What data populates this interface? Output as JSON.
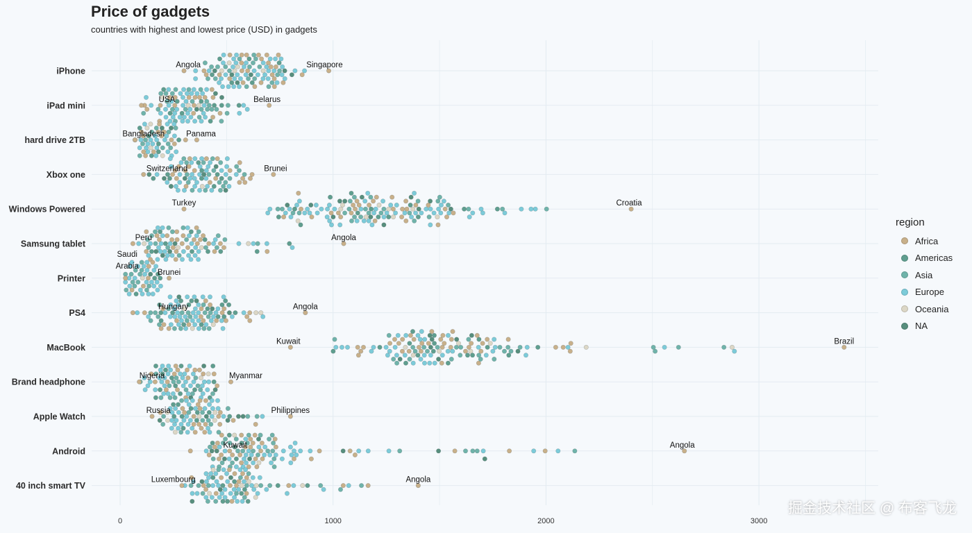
{
  "chart_data": {
    "type": "scatter",
    "title": "Price of gadgets",
    "subtitle": "countries with highest and lowest price (USD) in gadgets",
    "xlim": [
      0,
      3400
    ],
    "x_ticks": [
      0,
      1000,
      2000,
      3000
    ],
    "categories": [
      "iPhone",
      "iPad mini",
      "hard drive 2TB",
      "Xbox one",
      "Windows Powered",
      "Samsung tablet",
      "Printer",
      "PS4",
      "MacBook",
      "Brand headphone",
      "Apple Watch",
      "Android",
      "40 inch smart TV"
    ],
    "legend": {
      "title": "region",
      "position": "right",
      "items": [
        {
          "name": "Africa",
          "color": "#c8b08a"
        },
        {
          "name": "Americas",
          "color": "#5f9e8f"
        },
        {
          "name": "Asia",
          "color": "#6fb3aa"
        },
        {
          "name": "Europe",
          "color": "#7ccbd9"
        },
        {
          "name": "Oceania",
          "color": "#dcd7c6"
        },
        {
          "name": "NA",
          "color": "#578e7d"
        }
      ]
    },
    "series": [
      {
        "category": "iPhone",
        "min": 300,
        "max": 980,
        "center": 560,
        "annotations": [
          {
            "label": "Angola",
            "x": 320
          },
          {
            "label": "Singapore",
            "x": 960
          }
        ]
      },
      {
        "category": "iPad mini",
        "min": 100,
        "max": 700,
        "center": 300,
        "annotations": [
          {
            "label": "USA",
            "x": 220
          },
          {
            "label": "Belarus",
            "x": 690
          }
        ]
      },
      {
        "category": "hard drive 2TB",
        "min": 70,
        "max": 360,
        "center": 160,
        "annotations": [
          {
            "label": "Bangladesh",
            "x": 110
          },
          {
            "label": "Panama",
            "x": 380
          }
        ]
      },
      {
        "category": "Xbox one",
        "min": 110,
        "max": 720,
        "center": 340,
        "annotations": [
          {
            "label": "Switzerland",
            "x": 220
          },
          {
            "label": "Brunei",
            "x": 730
          }
        ]
      },
      {
        "category": "Windows Powered",
        "min": 300,
        "max": 2400,
        "center": 1150,
        "annotations": [
          {
            "label": "Turkey",
            "x": 300
          },
          {
            "label": "Croatia",
            "x": 2390
          }
        ]
      },
      {
        "category": "Samsung tablet",
        "min": 60,
        "max": 1050,
        "center": 280,
        "annotations": [
          {
            "label": "Peru",
            "x": 110
          },
          {
            "label": "Angola",
            "x": 1050
          }
        ]
      },
      {
        "category": "Printer",
        "min": 25,
        "max": 230,
        "center": 100,
        "annotations": [
          {
            "label": "Saudi",
            "x": 30
          },
          {
            "label": "Arabia",
            "x": 30
          },
          {
            "label": "Brunei",
            "x": 230
          }
        ]
      },
      {
        "category": "PS4",
        "min": 60,
        "max": 870,
        "center": 320,
        "annotations": [
          {
            "label": "Hungary",
            "x": 250
          },
          {
            "label": "Angola",
            "x": 870
          }
        ]
      },
      {
        "category": "MacBook",
        "min": 800,
        "max": 3400,
        "center": 1450,
        "annotations": [
          {
            "label": "Kuwait",
            "x": 790
          },
          {
            "label": "Brazil",
            "x": 3400
          }
        ]
      },
      {
        "category": "Brand headphone",
        "min": 90,
        "max": 520,
        "center": 280,
        "annotations": [
          {
            "label": "Nigeria",
            "x": 150
          },
          {
            "label": "Myanmar",
            "x": 590
          }
        ]
      },
      {
        "category": "Apple Watch",
        "min": 150,
        "max": 800,
        "center": 330,
        "annotations": [
          {
            "label": "Russia",
            "x": 180
          },
          {
            "label": "Philippines",
            "x": 800
          }
        ]
      },
      {
        "category": "Android",
        "min": 330,
        "max": 2650,
        "center": 600,
        "annotations": [
          {
            "label": "Kuwait",
            "x": 540
          },
          {
            "label": "Angola",
            "x": 2640
          }
        ]
      },
      {
        "category": "40 inch smart TV",
        "min": 290,
        "max": 1400,
        "center": 500,
        "annotations": [
          {
            "label": "Luxembourg",
            "x": 250
          },
          {
            "label": "Angola",
            "x": 1400
          }
        ]
      }
    ]
  },
  "watermark": "掘金技术社区 @ 布客飞龙"
}
